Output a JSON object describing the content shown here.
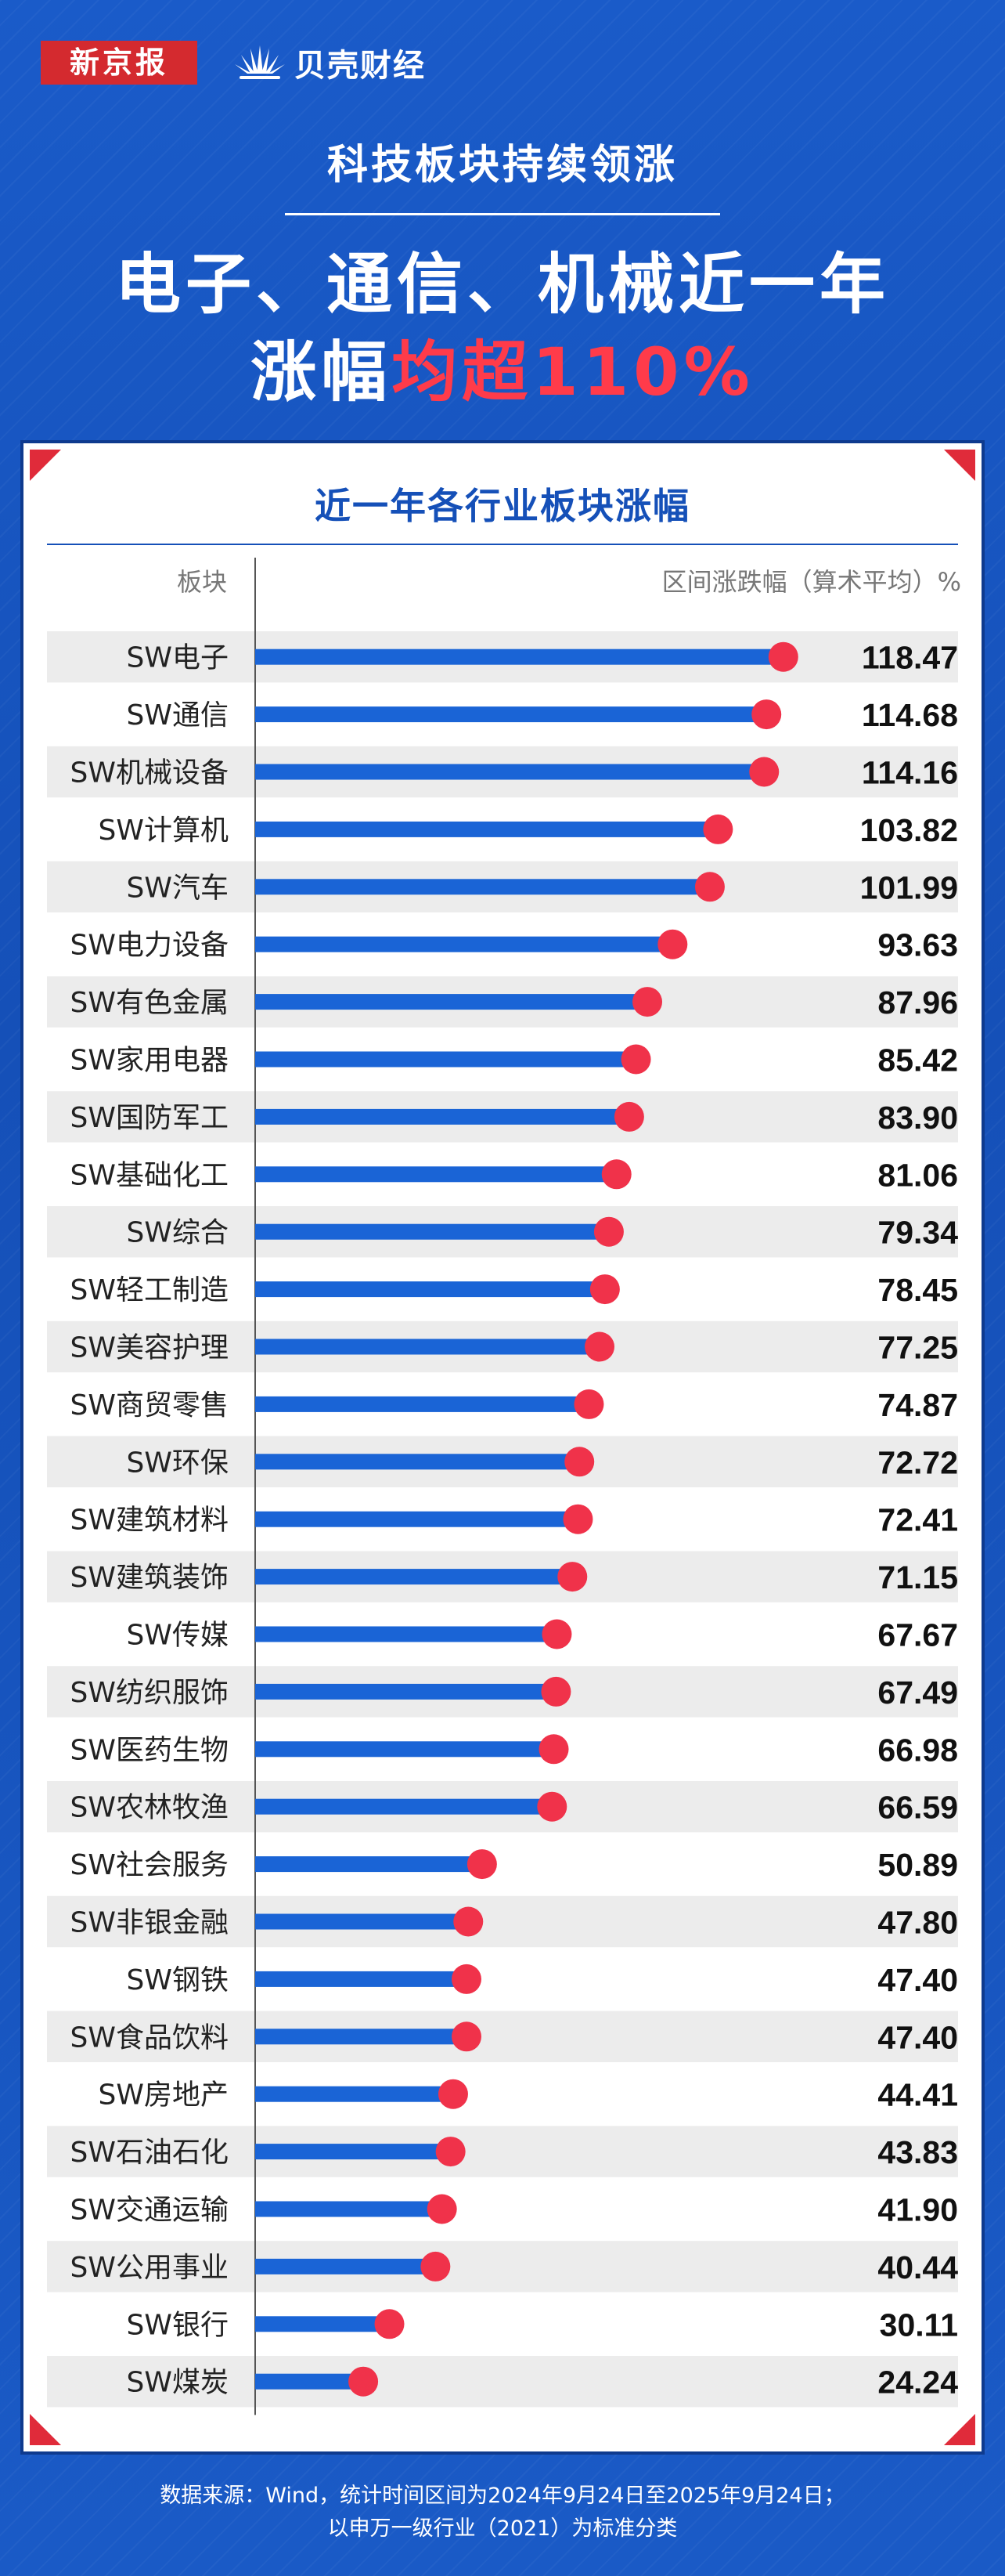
{
  "logos": {
    "xjb": "新京报",
    "beike": "贝壳财经"
  },
  "header": {
    "subtitle": "科技板块持续领涨",
    "title_line1": "电子、通信、机械近一年",
    "title_line2_white": "涨幅",
    "title_line2_red": "均超110%"
  },
  "colors": {
    "background": "#1550b8",
    "bar": "#1a64d6",
    "dot": "#f0324a",
    "highlight": "#ff3b4a",
    "stripe": "#ececec"
  },
  "chart_data": {
    "type": "bar",
    "orientation": "horizontal",
    "title": "近一年各行业板块涨幅",
    "category_header": "板块",
    "value_header": "区间涨跌幅（算术平均）%",
    "categories": [
      "SW电子",
      "SW通信",
      "SW机械设备",
      "SW计算机",
      "SW汽车",
      "SW电力设备",
      "SW有色金属",
      "SW家用电器",
      "SW国防军工",
      "SW基础化工",
      "SW综合",
      "SW轻工制造",
      "SW美容护理",
      "SW商贸零售",
      "SW环保",
      "SW建筑材料",
      "SW建筑装饰",
      "SW传媒",
      "SW纺织服饰",
      "SW医药生物",
      "SW农林牧渔",
      "SW社会服务",
      "SW非银金融",
      "SW钢铁",
      "SW食品饮料",
      "SW房地产",
      "SW石油石化",
      "SW交通运输",
      "SW公用事业",
      "SW银行",
      "SW煤炭"
    ],
    "values": [
      118.47,
      114.68,
      114.16,
      103.82,
      101.99,
      93.63,
      87.96,
      85.42,
      83.9,
      81.06,
      79.34,
      78.45,
      77.25,
      74.87,
      72.72,
      72.41,
      71.15,
      67.67,
      67.49,
      66.98,
      66.59,
      50.89,
      47.8,
      47.4,
      47.4,
      44.41,
      43.83,
      41.9,
      40.44,
      30.11,
      24.24
    ],
    "labels": [
      "118.47",
      "114.68",
      "114.16",
      "103.82",
      "101.99",
      "93.63",
      "87.96",
      "85.42",
      "83.90",
      "81.06",
      "79.34",
      "78.45",
      "77.25",
      "74.87",
      "72.72",
      "72.41",
      "71.15",
      "67.67",
      "67.49",
      "66.98",
      "66.59",
      "50.89",
      "47.80",
      "47.40",
      "47.40",
      "44.41",
      "43.83",
      "41.90",
      "40.44",
      "30.11",
      "24.24"
    ],
    "xlim": [
      0,
      125
    ],
    "grid": false
  },
  "footer": {
    "line1": "数据来源：Wind，统计时间区间为2024年9月24日至2025年9月24日；",
    "line2": "以申万一级行业（2021）为标准分类"
  }
}
